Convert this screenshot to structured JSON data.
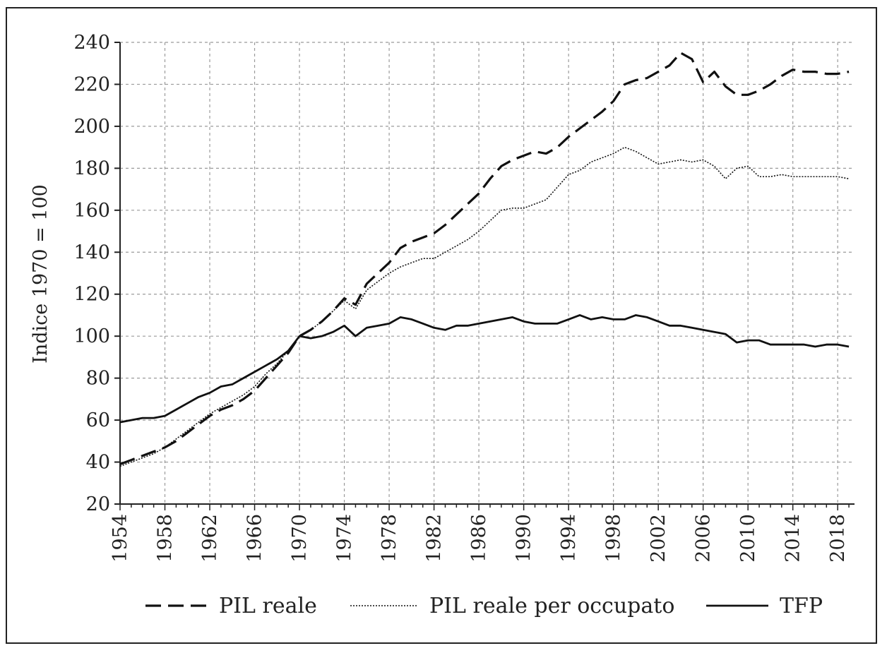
{
  "chart_data": {
    "type": "line",
    "ylabel": "Indice 1970 = 100",
    "xlabel": "",
    "ylim": [
      20,
      240
    ],
    "xlim": [
      1954,
      2019.5
    ],
    "yticks": [
      20,
      40,
      60,
      80,
      100,
      120,
      140,
      160,
      180,
      200,
      220,
      240
    ],
    "xticks": [
      1954,
      1958,
      1962,
      1966,
      1970,
      1974,
      1978,
      1982,
      1986,
      1990,
      1994,
      1998,
      2002,
      2006,
      2010,
      2014,
      2018
    ],
    "grid": true,
    "legend_position": "bottom",
    "x": [
      1954,
      1955,
      1956,
      1957,
      1958,
      1959,
      1960,
      1961,
      1962,
      1963,
      1964,
      1965,
      1966,
      1967,
      1968,
      1969,
      1970,
      1971,
      1972,
      1973,
      1974,
      1975,
      1976,
      1977,
      1978,
      1979,
      1980,
      1981,
      1982,
      1983,
      1984,
      1985,
      1986,
      1987,
      1988,
      1989,
      1990,
      1991,
      1992,
      1993,
      1994,
      1995,
      1996,
      1997,
      1998,
      1999,
      2000,
      2001,
      2002,
      2003,
      2004,
      2005,
      2006,
      2007,
      2008,
      2009,
      2010,
      2011,
      2012,
      2013,
      2014,
      2015,
      2016,
      2017,
      2018,
      2019
    ],
    "series": [
      {
        "name": "PIL reale",
        "style": "dashed",
        "values": [
          39,
          41,
          43,
          45,
          47,
          50,
          54,
          58,
          62,
          65,
          67,
          70,
          74,
          80,
          86,
          92,
          100,
          103,
          107,
          112,
          118,
          115,
          125,
          130,
          135,
          142,
          145,
          147,
          149,
          153,
          158,
          163,
          168,
          175,
          181,
          184,
          186,
          188,
          187,
          190,
          195,
          199,
          203,
          207,
          212,
          220,
          222,
          223,
          226,
          229,
          235,
          232,
          221,
          226,
          219,
          215,
          215,
          217,
          220,
          224,
          227,
          226,
          226,
          225,
          225,
          226
        ]
      },
      {
        "name": "PIL reale per occupato",
        "style": "dotted",
        "values": [
          38,
          40,
          42,
          44,
          47,
          51,
          55,
          59,
          63,
          66,
          69,
          72,
          76,
          82,
          87,
          93,
          100,
          103,
          107,
          112,
          117,
          113,
          122,
          126,
          130,
          133,
          135,
          137,
          137,
          140,
          143,
          146,
          150,
          155,
          160,
          161,
          161,
          163,
          165,
          171,
          177,
          179,
          183,
          185,
          187,
          190,
          188,
          185,
          182,
          183,
          184,
          183,
          184,
          181,
          175,
          180,
          181,
          176,
          176,
          177,
          176,
          176,
          176,
          176,
          176,
          175
        ]
      },
      {
        "name": "TFP",
        "style": "solid",
        "values": [
          59,
          60,
          61,
          61,
          62,
          65,
          68,
          71,
          73,
          76,
          77,
          80,
          83,
          86,
          89,
          93,
          100,
          99,
          100,
          102,
          105,
          100,
          104,
          105,
          106,
          109,
          108,
          106,
          104,
          103,
          105,
          105,
          106,
          107,
          108,
          109,
          107,
          106,
          106,
          106,
          108,
          110,
          108,
          109,
          108,
          108,
          110,
          109,
          107,
          105,
          105,
          104,
          103,
          102,
          101,
          97,
          98,
          98,
          96,
          96,
          96,
          96,
          95,
          96,
          96,
          95
        ]
      }
    ]
  }
}
